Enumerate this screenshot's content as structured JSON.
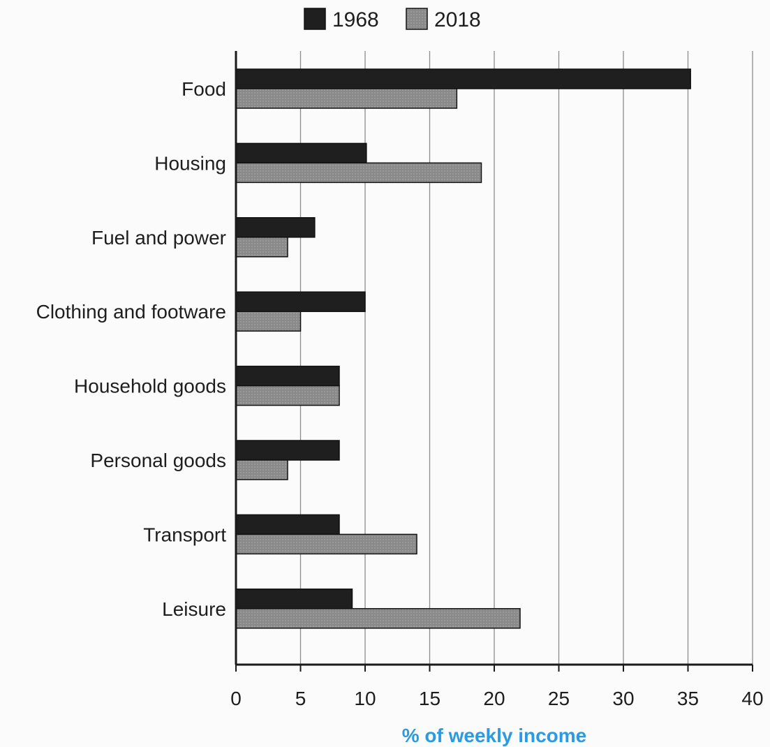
{
  "chart_data": {
    "type": "bar",
    "orientation": "horizontal",
    "title": "",
    "xlabel": "% of weekly income",
    "ylabel": "",
    "xlim": [
      0,
      40
    ],
    "xticks": [
      0,
      5,
      10,
      15,
      20,
      25,
      30,
      35,
      40
    ],
    "grid": "vertical",
    "legend_position": "top-center",
    "categories": [
      "Food",
      "Housing",
      "Fuel and power",
      "Clothing and footware",
      "Household goods",
      "Personal goods",
      "Transport",
      "Leisure"
    ],
    "series": [
      {
        "name": "1968",
        "color": "#1f1f1f",
        "values": [
          35.2,
          10.1,
          6.1,
          10.0,
          8.0,
          8.0,
          8.0,
          9.0
        ]
      },
      {
        "name": "2018",
        "color": "#8a8a8a",
        "values": [
          17.1,
          19.0,
          4.0,
          5.0,
          8.0,
          4.0,
          14.0,
          22.0
        ]
      }
    ],
    "colors": {
      "axis_title": "#2a9be0",
      "grid": "#8c8c8c",
      "text": "#1e1e1e"
    }
  }
}
